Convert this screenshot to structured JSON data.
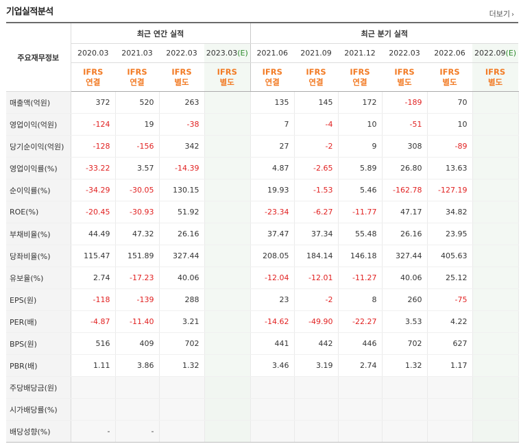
{
  "header": {
    "title": "기업실적분석",
    "more_label": "더보기",
    "more_icon": "chevron-right-icon"
  },
  "table": {
    "corner_label": "주요재무정보",
    "annual_group_label": "최근 연간 실적",
    "quarterly_group_label": "최근 분기 실적",
    "periods": [
      {
        "label": "2020.03",
        "estimate": false
      },
      {
        "label": "2021.03",
        "estimate": false
      },
      {
        "label": "2022.03",
        "estimate": false
      },
      {
        "label": "2023.03",
        "estimate": true
      },
      {
        "label": "2021.06",
        "estimate": false
      },
      {
        "label": "2021.09",
        "estimate": false
      },
      {
        "label": "2021.12",
        "estimate": false
      },
      {
        "label": "2022.03",
        "estimate": false
      },
      {
        "label": "2022.06",
        "estimate": false
      },
      {
        "label": "2022.09",
        "estimate": true
      }
    ],
    "estimate_mark": "(E)",
    "accounting": [
      {
        "std": "IFRS",
        "basis": "연결"
      },
      {
        "std": "IFRS",
        "basis": "연결"
      },
      {
        "std": "IFRS",
        "basis": "별도"
      },
      {
        "std": "IFRS",
        "basis": "별도"
      },
      {
        "std": "IFRS",
        "basis": "연결"
      },
      {
        "std": "IFRS",
        "basis": "연결"
      },
      {
        "std": "IFRS",
        "basis": "연결"
      },
      {
        "std": "IFRS",
        "basis": "별도"
      },
      {
        "std": "IFRS",
        "basis": "별도"
      },
      {
        "std": "IFRS",
        "basis": "별도"
      }
    ],
    "rows": [
      {
        "label": "매출액(억원)",
        "values": [
          "372",
          "520",
          "263",
          "",
          "135",
          "145",
          "172",
          "-189",
          "70",
          ""
        ]
      },
      {
        "label": "영업이익(억원)",
        "values": [
          "-124",
          "19",
          "-38",
          "",
          "7",
          "-4",
          "10",
          "-51",
          "10",
          ""
        ]
      },
      {
        "label": "당기순이익(억원)",
        "values": [
          "-128",
          "-156",
          "342",
          "",
          "27",
          "-2",
          "9",
          "308",
          "-89",
          ""
        ]
      },
      {
        "label": "영업이익률(%)",
        "values": [
          "-33.22",
          "3.57",
          "-14.39",
          "",
          "4.87",
          "-2.65",
          "5.89",
          "26.80",
          "13.63",
          ""
        ]
      },
      {
        "label": "순이익률(%)",
        "values": [
          "-34.29",
          "-30.05",
          "130.15",
          "",
          "19.93",
          "-1.53",
          "5.46",
          "-162.78",
          "-127.19",
          ""
        ]
      },
      {
        "label": "ROE(%)",
        "values": [
          "-20.45",
          "-30.93",
          "51.92",
          "",
          "-23.34",
          "-6.27",
          "-11.77",
          "47.17",
          "34.82",
          ""
        ]
      },
      {
        "label": "부채비율(%)",
        "values": [
          "44.49",
          "47.32",
          "26.16",
          "",
          "37.47",
          "37.34",
          "55.48",
          "26.16",
          "23.95",
          ""
        ]
      },
      {
        "label": "당좌비율(%)",
        "values": [
          "115.47",
          "151.89",
          "327.44",
          "",
          "208.05",
          "184.14",
          "146.18",
          "327.44",
          "405.63",
          ""
        ]
      },
      {
        "label": "유보율(%)",
        "values": [
          "2.74",
          "-17.23",
          "40.06",
          "",
          "-12.04",
          "-12.01",
          "-11.27",
          "40.06",
          "25.12",
          ""
        ]
      },
      {
        "label": "EPS(원)",
        "values": [
          "-118",
          "-139",
          "288",
          "",
          "23",
          "-2",
          "8",
          "260",
          "-75",
          ""
        ]
      },
      {
        "label": "PER(배)",
        "values": [
          "-4.87",
          "-11.40",
          "3.21",
          "",
          "-14.62",
          "-49.90",
          "-22.27",
          "3.53",
          "4.22",
          ""
        ]
      },
      {
        "label": "BPS(원)",
        "values": [
          "516",
          "409",
          "702",
          "",
          "441",
          "442",
          "446",
          "702",
          "627",
          ""
        ]
      },
      {
        "label": "PBR(배)",
        "values": [
          "1.11",
          "3.86",
          "1.32",
          "",
          "3.46",
          "3.19",
          "2.74",
          "1.32",
          "1.17",
          ""
        ]
      },
      {
        "label": "주당배당금(원)",
        "values": [
          "",
          "",
          "",
          "",
          "",
          "",
          "",
          "",
          "",
          ""
        ]
      },
      {
        "label": "시가배당률(%)",
        "values": [
          "",
          "",
          "",
          "",
          "",
          "",
          "",
          "",
          "",
          ""
        ]
      },
      {
        "label": "배당성향(%)",
        "values": [
          "-",
          "-",
          "",
          "",
          "",
          "",
          "",
          "",
          "",
          ""
        ]
      }
    ]
  }
}
